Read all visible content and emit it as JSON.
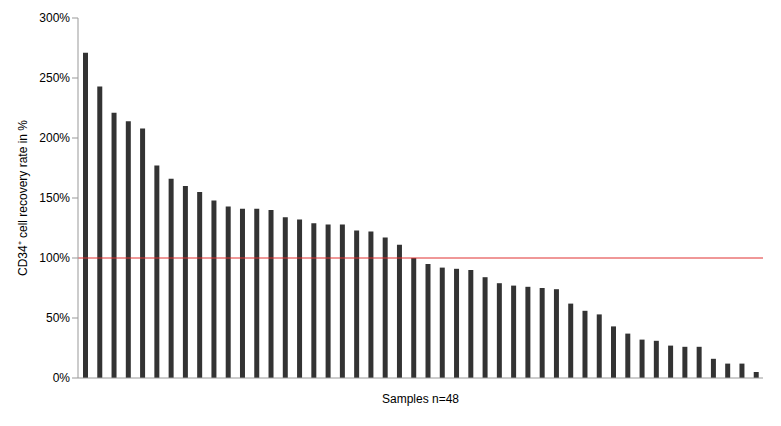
{
  "chart_data": {
    "type": "bar",
    "x_label": "Samples n=48",
    "y_label": "CD34⁺ cell recovery rate in %",
    "categories": [
      null,
      null,
      null,
      null,
      null,
      null,
      null,
      null,
      null,
      null,
      null,
      null,
      null,
      null,
      null,
      null,
      null,
      null,
      null,
      null,
      null,
      null,
      null,
      null,
      null,
      null,
      null,
      null,
      null,
      null,
      null,
      null,
      null,
      null,
      null,
      null,
      null,
      null,
      null,
      null,
      null,
      null,
      null,
      null,
      null,
      null,
      null,
      null
    ],
    "values": [
      271,
      243,
      221,
      214,
      208,
      177,
      166,
      160,
      155,
      148,
      143,
      141,
      141,
      140,
      134,
      132,
      129,
      128,
      128,
      123,
      122,
      117,
      111,
      100,
      95,
      92,
      91,
      90,
      84,
      79,
      77,
      76,
      75,
      74,
      62,
      56,
      53,
      43,
      37,
      32,
      31,
      27,
      26,
      26,
      16,
      12,
      12,
      5
    ],
    "color": "#333333",
    "threshold": 100,
    "ylim": [
      0,
      300
    ],
    "yticks": [
      {
        "value": 0,
        "label": "0%"
      },
      {
        "value": 50,
        "label": "50%"
      },
      {
        "value": 100,
        "label": "100%"
      },
      {
        "value": 150,
        "label": "150%"
      },
      {
        "value": 200,
        "label": "200%"
      },
      {
        "value": 250,
        "label": "250%"
      },
      {
        "value": 300,
        "label": "300%"
      }
    ],
    "grid": false,
    "tick_labels": "y"
  }
}
